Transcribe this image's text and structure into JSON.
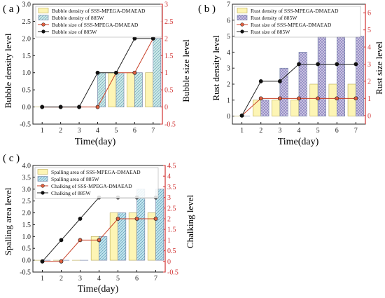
{
  "panel_labels": [
    "( a )",
    "( b )",
    "( c )"
  ],
  "colors": {
    "sss_bar": "#fdf5b5",
    "w885_bar_a": "#cbe8e8",
    "w885_bar_b": "#c8c2e2",
    "w885_bar_c": "#bfe3ee",
    "sss_line": "#c84028",
    "w885_line": "#222222",
    "right_axis": "#d03030"
  },
  "chart_data": [
    {
      "type": "bar",
      "panel": "( a )",
      "categories": [
        "1",
        "2",
        "3",
        "4",
        "5",
        "6",
        "7"
      ],
      "xlabel": "Time(day)",
      "ylabel": "Bubble density level",
      "y2label": "Bubble size level",
      "ylim": [
        -0.5,
        3.0
      ],
      "y2lim": [
        -0.5,
        3.0
      ],
      "yticks": [
        "-0.5",
        "0.0",
        "0.5",
        "1.0",
        "1.5",
        "2.0",
        "2.5",
        "3.0"
      ],
      "y2ticks": [
        "-0.5",
        "0",
        "0.5",
        "1",
        "1.5",
        "2",
        "2.5",
        "3"
      ],
      "legend_position": "top-left",
      "series": [
        {
          "name": "Bubble density of SSS-MPEGA-DMAEAD",
          "kind": "bar",
          "values": [
            0,
            0,
            0,
            0,
            1,
            1,
            1
          ]
        },
        {
          "name": "Bubble density of 885W",
          "kind": "bar",
          "values": [
            0,
            0,
            0,
            1,
            1,
            1,
            2
          ]
        },
        {
          "name": "Bubble size of SSS-MPEGA-DMAEAD",
          "kind": "line",
          "values": [
            0,
            0,
            0,
            0,
            1,
            1,
            2
          ]
        },
        {
          "name": "Bubble size of 885W",
          "kind": "line",
          "values": [
            0,
            0,
            0,
            1,
            1,
            2,
            2
          ]
        }
      ]
    },
    {
      "type": "bar",
      "panel": "( b )",
      "categories": [
        "1",
        "2",
        "3",
        "4",
        "5",
        "6",
        "7"
      ],
      "xlabel": "Time(day)",
      "ylabel": "Rust density level",
      "y2label": "Rust size level",
      "ylim": [
        -0.5,
        7
      ],
      "y2lim": [
        -0.5,
        6.5
      ],
      "yticks": [
        "0",
        "1",
        "2",
        "3",
        "4",
        "5",
        "6",
        "7"
      ],
      "y2ticks": [
        "0",
        "1",
        "2",
        "3",
        "4",
        "5",
        "6"
      ],
      "legend_position": "top-left",
      "series": [
        {
          "name": "Rust density of SSS-MPEGA-DMAEAD",
          "kind": "bar",
          "values": [
            0,
            1,
            1,
            1,
            2,
            2,
            2
          ]
        },
        {
          "name": "Rust density of 885W",
          "kind": "bar",
          "values": [
            0,
            1,
            3,
            4,
            5,
            5,
            5
          ]
        },
        {
          "name": "Rust size of SSS-MPEGA-DMAEAD",
          "kind": "line",
          "values": [
            0,
            1,
            1,
            1,
            1,
            1,
            1
          ]
        },
        {
          "name": "Rust size of 885W",
          "kind": "line",
          "values": [
            0,
            2,
            2,
            3,
            3,
            3,
            3
          ]
        }
      ]
    },
    {
      "type": "bar",
      "panel": "( c )",
      "categories": [
        "1",
        "2",
        "3",
        "4",
        "5",
        "6",
        "7"
      ],
      "xlabel": "Time(day)",
      "ylabel": "Spalling area level",
      "y2label": "Chalking level",
      "ylim": [
        -0.5,
        4.0
      ],
      "y2lim": [
        -0.5,
        4.5
      ],
      "yticks": [
        "-0.5",
        "0.0",
        "0.5",
        "1.0",
        "1.5",
        "2.0",
        "2.5",
        "3.0",
        "3.5",
        "4.0"
      ],
      "y2ticks": [
        "-0.5",
        "0",
        "0.5",
        "1",
        "1.5",
        "2",
        "2.5",
        "3",
        "3.5",
        "4",
        "4.5"
      ],
      "legend_position": "top-left",
      "series": [
        {
          "name": "Spalling area of SSS-MPEGA-DMAEAD",
          "kind": "bar",
          "values": [
            0,
            0,
            0,
            1,
            2,
            2,
            2
          ]
        },
        {
          "name": "Spalling area of 885W",
          "kind": "bar",
          "values": [
            0,
            0,
            0,
            1,
            2,
            3,
            3
          ]
        },
        {
          "name": "Chalking of SSS-MPEGA-DMAEAD",
          "kind": "line",
          "values": [
            0,
            0,
            1,
            1,
            2,
            2,
            2
          ]
        },
        {
          "name": "Chalking of 885W",
          "kind": "line",
          "values": [
            0,
            1,
            2,
            3,
            3,
            3,
            3
          ]
        }
      ]
    }
  ]
}
